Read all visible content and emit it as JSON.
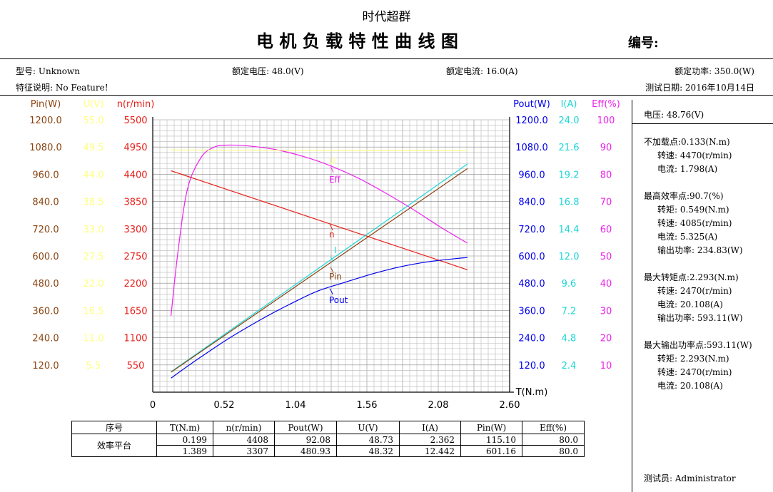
{
  "header": {
    "company": "时代超群",
    "title": "电 机 负 载 特 性 曲 线 图",
    "number_label": "编号:",
    "model": "型号: Unknown",
    "rated_voltage": "额定电压: 48.0(V)",
    "rated_current": "额定电流: 16.0(A)",
    "rated_power": "额定功率: 350.0(W)",
    "feature": "特征说明: No Feature!",
    "test_date": "测试日期: 2016年10月14日"
  },
  "side_panel": {
    "voltage": "电压:   48.76(V)",
    "no_load": [
      "不加载点:0.133(N.m)",
      "转速: 4470(r/min)",
      "电流: 1.798(A)"
    ],
    "max_eff": [
      "最高效率点:90.7(%)",
      "转矩: 0.549(N.m)",
      "转速: 4085(r/min)",
      "电流: 5.325(A)",
      "输出功率: 234.83(W)"
    ],
    "max_torque": [
      "最大转矩点:2.293(N.m)",
      "转速: 2470(r/min)",
      "电流: 20.108(A)",
      "输出功率: 593.11(W)"
    ],
    "max_power": [
      "最大输出功率点:593.11(W)",
      "转矩: 2.293(N.m)",
      "转速: 2470(r/min)",
      "电流: 20.108(A)"
    ],
    "tester": "测试员: Administrator"
  },
  "eff_table": {
    "headers": [
      "序号",
      "T(N.m)",
      "n(r/min)",
      "Pout(W)",
      "U(V)",
      "I(A)",
      "Pin(W)",
      "Eff(%)"
    ],
    "row_label": "效率平台",
    "rows": [
      [
        "0.199",
        "4408",
        "92.08",
        "48.73",
        "2.362",
        "115.10",
        "80.0"
      ],
      [
        "1.389",
        "3307",
        "480.93",
        "48.32",
        "12.442",
        "601.16",
        "80.0"
      ]
    ]
  },
  "colors": {
    "pin": "#8b4513",
    "u": "#ffff80",
    "n": "#e8201a",
    "pout": "#0000ee",
    "i": "#1cd6d6",
    "eff": "#ee22ee",
    "grid": "#b8b8b8"
  },
  "chart_data": {
    "type": "line",
    "x_label": "T(N.m)",
    "x_ticks": [
      "0",
      "0.52",
      "1.04",
      "1.56",
      "2.08",
      "2.60"
    ],
    "xlim": [
      0,
      2.6
    ],
    "axes": [
      {
        "key": "pin",
        "label": "Pin(W)",
        "ticks": [
          "120.0",
          "240.0",
          "360.0",
          "480.0",
          "600.0",
          "720.0",
          "840.0",
          "960.0",
          "1080.0",
          "1200.0"
        ],
        "range": [
          0,
          1200
        ]
      },
      {
        "key": "u",
        "label": "U(V)",
        "ticks": [
          "5.5",
          "11.0",
          "16.5",
          "22.0",
          "27.5",
          "33.0",
          "38.5",
          "44.0",
          "49.5",
          "55.0"
        ],
        "range": [
          0,
          55
        ]
      },
      {
        "key": "n",
        "label": "n(r/min)",
        "ticks": [
          "550",
          "1100",
          "1650",
          "2200",
          "2750",
          "3300",
          "3850",
          "4400",
          "4950",
          "5500"
        ],
        "range": [
          0,
          5500
        ]
      },
      {
        "key": "pout",
        "label": "Pout(W)",
        "ticks": [
          "120.0",
          "240.0",
          "360.0",
          "480.0",
          "600.0",
          "720.0",
          "840.0",
          "960.0",
          "1080.0",
          "1200.0"
        ],
        "range": [
          0,
          1200
        ]
      },
      {
        "key": "i",
        "label": "I(A)",
        "ticks": [
          "2.4",
          "4.8",
          "7.2",
          "9.6",
          "12.0",
          "14.4",
          "16.8",
          "19.2",
          "21.6",
          "24.0"
        ],
        "range": [
          0,
          24
        ]
      },
      {
        "key": "eff",
        "label": "Eff(%)",
        "ticks": [
          "10",
          "20",
          "30",
          "40",
          "50",
          "60",
          "70",
          "80",
          "90",
          "100"
        ],
        "range": [
          0,
          100
        ]
      }
    ],
    "series": [
      {
        "name": "Eff",
        "key": "eff",
        "points": [
          [
            0.133,
            28
          ],
          [
            0.18,
            50
          ],
          [
            0.25,
            74
          ],
          [
            0.35,
            86
          ],
          [
            0.45,
            90
          ],
          [
            0.549,
            90.7
          ],
          [
            0.7,
            90.4
          ],
          [
            0.9,
            89
          ],
          [
            1.1,
            86.5
          ],
          [
            1.3,
            83
          ],
          [
            1.5,
            78.5
          ],
          [
            1.7,
            73
          ],
          [
            1.9,
            67
          ],
          [
            2.1,
            60.5
          ],
          [
            2.293,
            54.7
          ]
        ]
      },
      {
        "name": "U",
        "key": "u",
        "points": [
          [
            0.133,
            48.9
          ],
          [
            2.293,
            48.76
          ]
        ]
      },
      {
        "name": "n",
        "key": "n",
        "points": [
          [
            0.133,
            4470
          ],
          [
            2.293,
            2470
          ]
        ]
      },
      {
        "name": "I",
        "key": "i",
        "points": [
          [
            0.133,
            1.798
          ],
          [
            2.293,
            20.108
          ]
        ]
      },
      {
        "name": "Pin",
        "key": "pin",
        "points": [
          [
            0.133,
            88
          ],
          [
            2.293,
            985
          ]
        ]
      },
      {
        "name": "Pout",
        "key": "pout",
        "points": [
          [
            0.133,
            62
          ],
          [
            0.3,
            134
          ],
          [
            0.549,
            234.83
          ],
          [
            0.8,
            324
          ],
          [
            1.0,
            388
          ],
          [
            1.2,
            445
          ],
          [
            1.4,
            484
          ],
          [
            1.6,
            521
          ],
          [
            1.8,
            552
          ],
          [
            2.0,
            574
          ],
          [
            2.2,
            588
          ],
          [
            2.293,
            593.11
          ]
        ]
      }
    ]
  }
}
